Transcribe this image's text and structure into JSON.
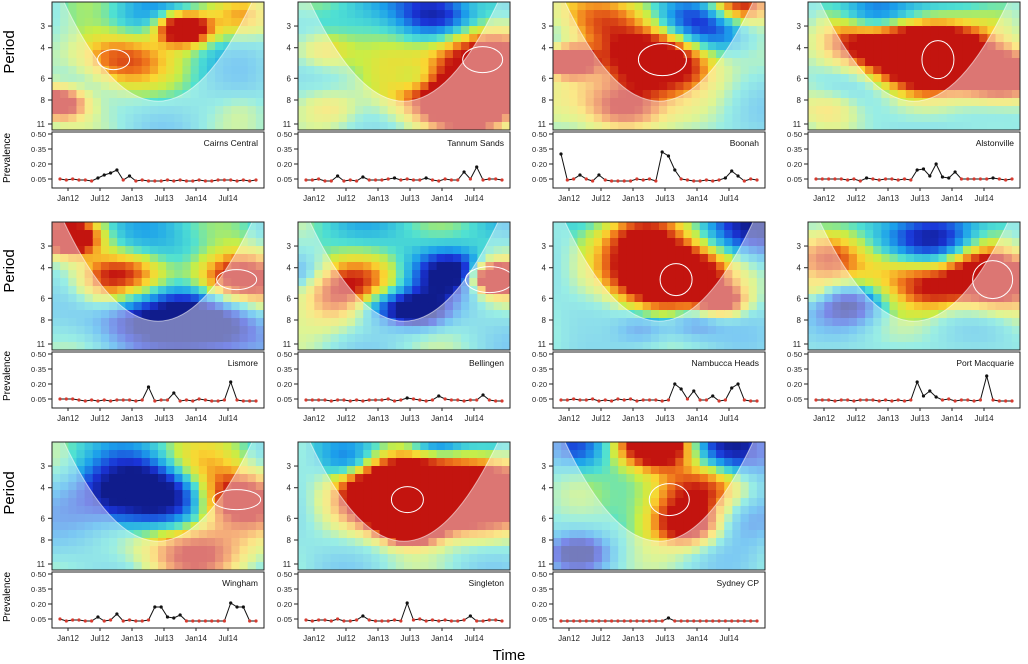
{
  "figure": {
    "y_label_top": "Period",
    "y_label_bottom": "Prevalence",
    "x_label": "Time"
  },
  "chart_data": {
    "type": "wavelet_power_with_time_series",
    "period_ticks": [
      3,
      4,
      6,
      8,
      11
    ],
    "prevalence_ticks": [
      "0·50",
      "0·35",
      "0·20",
      "0·05"
    ],
    "prevalence_ylim": [
      0,
      0.5
    ],
    "time_ticks": [
      "Jan12",
      "Jul12",
      "Jan13",
      "Jul13",
      "Jan14",
      "Jul14"
    ],
    "colors": {
      "low": "#1a2bd6",
      "mid": "#f3e84a",
      "high": "#c8140e",
      "point_red": "#d63a2f",
      "point_black": "#111111"
    },
    "panels": [
      {
        "site": "Cairns Central",
        "prevalence": [
          0.05,
          0.04,
          0.05,
          0.04,
          0.04,
          0.03,
          0.06,
          0.09,
          0.11,
          0.14,
          0.04,
          0.08,
          0.03,
          0.04,
          0.03,
          0.03,
          0.03,
          0.04,
          0.03,
          0.04,
          0.03,
          0.03,
          0.04,
          0.03,
          0.03,
          0.04,
          0.04,
          0.04,
          0.03,
          0.04,
          0.03,
          0.04
        ]
      },
      {
        "site": "Tannum Sands",
        "prevalence": [
          0.04,
          0.04,
          0.05,
          0.03,
          0.03,
          0.08,
          0.03,
          0.04,
          0.03,
          0.07,
          0.04,
          0.04,
          0.04,
          0.05,
          0.06,
          0.04,
          0.05,
          0.04,
          0.04,
          0.06,
          0.04,
          0.03,
          0.05,
          0.04,
          0.04,
          0.12,
          0.05,
          0.17,
          0.04,
          0.05,
          0.05,
          0.04
        ]
      },
      {
        "site": "Boonah",
        "prevalence": [
          0.3,
          0.04,
          0.05,
          0.09,
          0.05,
          0.03,
          0.09,
          0.04,
          0.03,
          0.03,
          0.03,
          0.03,
          0.05,
          0.04,
          0.05,
          0.03,
          0.32,
          0.28,
          0.14,
          0.05,
          0.04,
          0.03,
          0.03,
          0.04,
          0.03,
          0.04,
          0.06,
          0.13,
          0.08,
          0.03,
          0.05,
          0.04
        ]
      },
      {
        "site": "Alstonville",
        "prevalence": [
          0.05,
          0.05,
          0.05,
          0.05,
          0.05,
          0.04,
          0.05,
          0.03,
          0.06,
          0.05,
          0.04,
          0.05,
          0.05,
          0.04,
          0.05,
          0.04,
          0.14,
          0.15,
          0.08,
          0.2,
          0.07,
          0.06,
          0.12,
          0.05,
          0.05,
          0.05,
          0.05,
          0.05,
          0.06,
          0.05,
          0.04,
          0.05
        ]
      },
      {
        "site": "Lismore",
        "prevalence": [
          0.05,
          0.05,
          0.05,
          0.04,
          0.03,
          0.04,
          0.03,
          0.04,
          0.03,
          0.04,
          0.04,
          0.04,
          0.03,
          0.04,
          0.17,
          0.03,
          0.04,
          0.04,
          0.11,
          0.03,
          0.04,
          0.03,
          0.05,
          0.04,
          0.03,
          0.03,
          0.04,
          0.22,
          0.04,
          0.03,
          0.03,
          0.03
        ]
      },
      {
        "site": "Bellingen",
        "prevalence": [
          0.04,
          0.04,
          0.04,
          0.04,
          0.03,
          0.04,
          0.04,
          0.03,
          0.04,
          0.03,
          0.04,
          0.04,
          0.04,
          0.05,
          0.03,
          0.04,
          0.06,
          0.05,
          0.04,
          0.03,
          0.04,
          0.08,
          0.05,
          0.04,
          0.04,
          0.03,
          0.04,
          0.04,
          0.09,
          0.04,
          0.03,
          0.03
        ]
      },
      {
        "site": "Nambucca Heads",
        "prevalence": [
          0.04,
          0.04,
          0.05,
          0.04,
          0.04,
          0.05,
          0.03,
          0.04,
          0.03,
          0.05,
          0.04,
          0.05,
          0.03,
          0.04,
          0.04,
          0.04,
          0.03,
          0.04,
          0.2,
          0.15,
          0.05,
          0.13,
          0.04,
          0.04,
          0.08,
          0.03,
          0.04,
          0.16,
          0.2,
          0.04,
          0.03,
          0.03
        ]
      },
      {
        "site": "Port Macquarie",
        "prevalence": [
          0.04,
          0.04,
          0.04,
          0.03,
          0.04,
          0.04,
          0.03,
          0.04,
          0.04,
          0.04,
          0.03,
          0.04,
          0.03,
          0.04,
          0.03,
          0.04,
          0.22,
          0.08,
          0.13,
          0.07,
          0.04,
          0.05,
          0.03,
          0.04,
          0.04,
          0.03,
          0.04,
          0.28,
          0.04,
          0.03,
          0.03,
          0.03
        ]
      },
      {
        "site": "Wingham",
        "prevalence": [
          0.05,
          0.03,
          0.04,
          0.04,
          0.03,
          0.03,
          0.07,
          0.03,
          0.04,
          0.1,
          0.03,
          0.04,
          0.03,
          0.03,
          0.04,
          0.17,
          0.17,
          0.07,
          0.06,
          0.09,
          0.03,
          0.03,
          0.03,
          0.03,
          0.03,
          0.03,
          0.03,
          0.21,
          0.17,
          0.17,
          0.03,
          0.03
        ]
      },
      {
        "site": "Singleton",
        "prevalence": [
          0.04,
          0.03,
          0.04,
          0.04,
          0.03,
          0.05,
          0.03,
          0.03,
          0.04,
          0.08,
          0.04,
          0.03,
          0.03,
          0.03,
          0.04,
          0.03,
          0.21,
          0.04,
          0.05,
          0.03,
          0.04,
          0.03,
          0.04,
          0.03,
          0.03,
          0.04,
          0.08,
          0.03,
          0.03,
          0.04,
          0.04,
          0.03
        ]
      },
      {
        "site": "Sydney CP",
        "prevalence": [
          0.03,
          0.03,
          0.03,
          0.03,
          0.03,
          0.03,
          0.03,
          0.03,
          0.03,
          0.03,
          0.03,
          0.03,
          0.03,
          0.03,
          0.03,
          0.03,
          0.03,
          0.06,
          0.03,
          0.03,
          0.03,
          0.03,
          0.03,
          0.03,
          0.03,
          0.03,
          0.03,
          0.03,
          0.03,
          0.03,
          0.03,
          0.03
        ]
      }
    ]
  }
}
